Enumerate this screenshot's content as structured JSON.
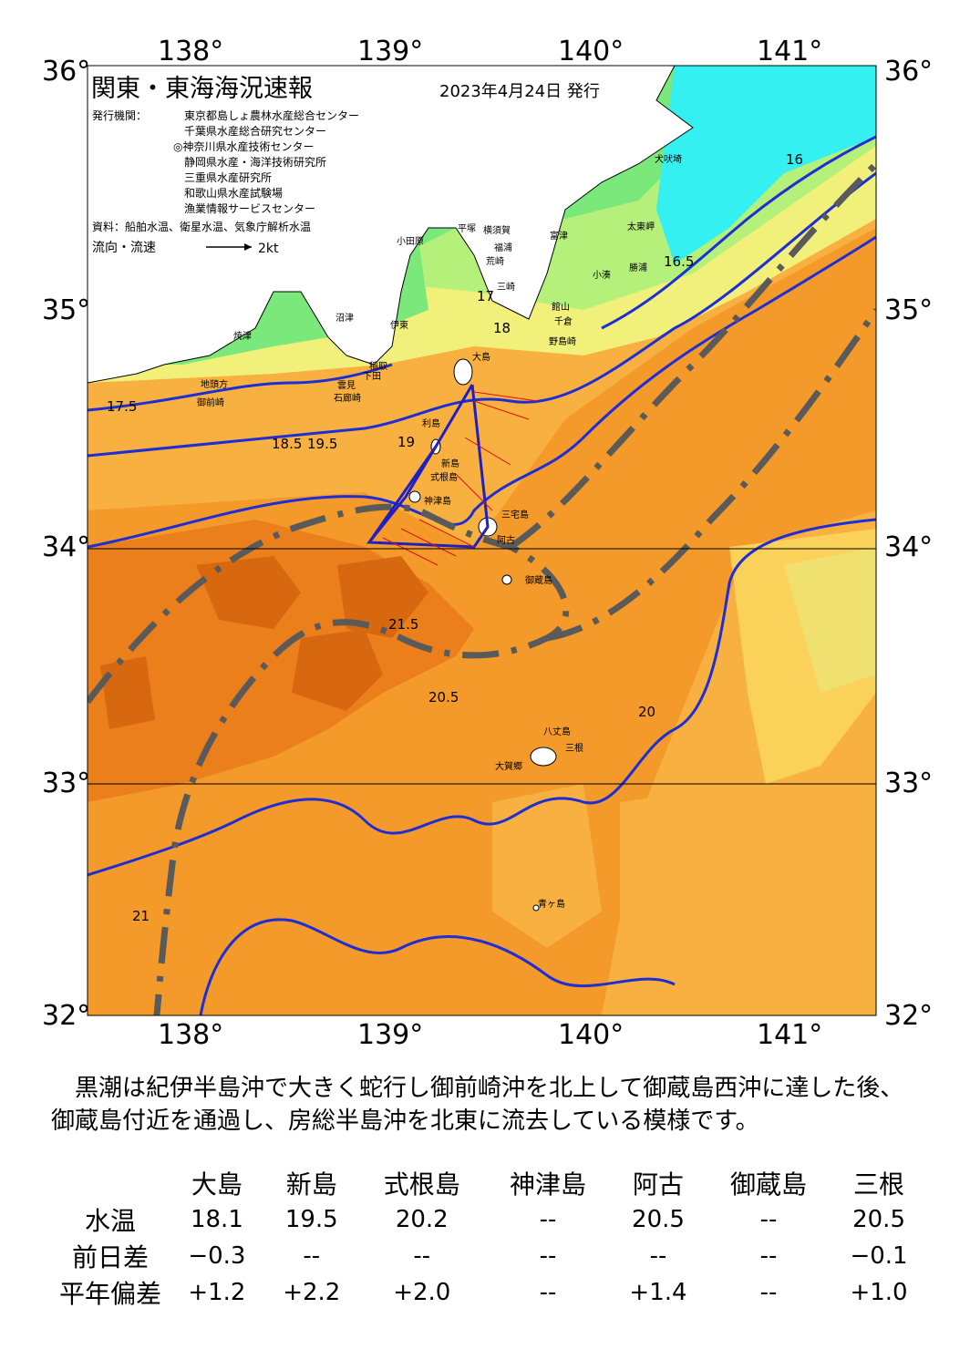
{
  "map": {
    "title": "関東・東海海況速報",
    "issue_date": "2023年4月24日 発行",
    "issuer_label": "発行機関：",
    "issuers": [
      "東京都島しょ農林水産総合センター",
      "千葉県水産総合研究センター",
      "◎神奈川県水産技術センター",
      "静岡県水産・海洋技術研究所",
      "三重県水産研究所",
      "和歌山県水産試験場",
      "漁業情報サービスセンター"
    ],
    "sources": "資料：船舶水温、衛星水温、気象庁解析水温",
    "flow_legend": "流向・流速",
    "flow_scale": "2kt",
    "lon_labels": [
      "138°",
      "139°",
      "140°",
      "141°"
    ],
    "lat_labels": [
      "36°",
      "35°",
      "34°",
      "33°",
      "32°"
    ],
    "place_names": [
      "犬吠埼",
      "太東岬",
      "小田原",
      "平塚",
      "横須賀",
      "富津",
      "勝浦",
      "小湊",
      "館山",
      "千倉",
      "野島崎",
      "大島",
      "利島",
      "新島",
      "式根島",
      "神津島",
      "三宅島",
      "阿古",
      "御蔵島",
      "八丈島",
      "三根",
      "大賀郷",
      "青ヶ島",
      "伊東",
      "下田",
      "稲取",
      "石廊崎",
      "雲見",
      "沼津",
      "焼津",
      "御前崎",
      "地頭方",
      "三崎",
      "荒崎",
      "福浦"
    ],
    "isotherm_labels": [
      "16",
      "16.5",
      "17",
      "17.5",
      "18",
      "18.5",
      "19",
      "19.5",
      "20",
      "20.5",
      "21",
      "21.5"
    ],
    "colors": {
      "land": "#ffffff",
      "temp_16": "#35f0f0",
      "temp_17": "#7ae87a",
      "temp_18": "#b4f07a",
      "temp_19": "#f0f07a",
      "temp_19_5": "#fad25a",
      "temp_20": "#f8b040",
      "temp_20_5": "#f39a2a",
      "temp_21": "#ea7f1c",
      "temp_21_5": "#d86810",
      "isotherm": "#1e2ed6",
      "kuroshio_axis": "#5a5a5a",
      "survey_track": "#2020c0",
      "flow_arrow": "#e01010"
    }
  },
  "summary": "黒潮は紀伊半島沖で大きく蛇行し御前崎沖を北上して御蔵島西沖に達した後、御蔵島付近を通過し、房総半島沖を北東に流去している模様です。",
  "table": {
    "stations": [
      "大島",
      "新島",
      "式根島",
      "神津島",
      "阿古",
      "御蔵島",
      "三根"
    ],
    "rows": [
      {
        "label": "水温",
        "values": [
          "18.1",
          "19.5",
          "20.2",
          "--",
          "20.5",
          "--",
          "20.5"
        ]
      },
      {
        "label": "前日差",
        "values": [
          "−0.3",
          "--",
          "--",
          "--",
          "--",
          "--",
          "−0.1"
        ]
      },
      {
        "label": "平年偏差",
        "values": [
          "+1.2",
          "+2.2",
          "+2.0",
          "--",
          "+1.4",
          "--",
          "+1.0"
        ]
      }
    ]
  }
}
